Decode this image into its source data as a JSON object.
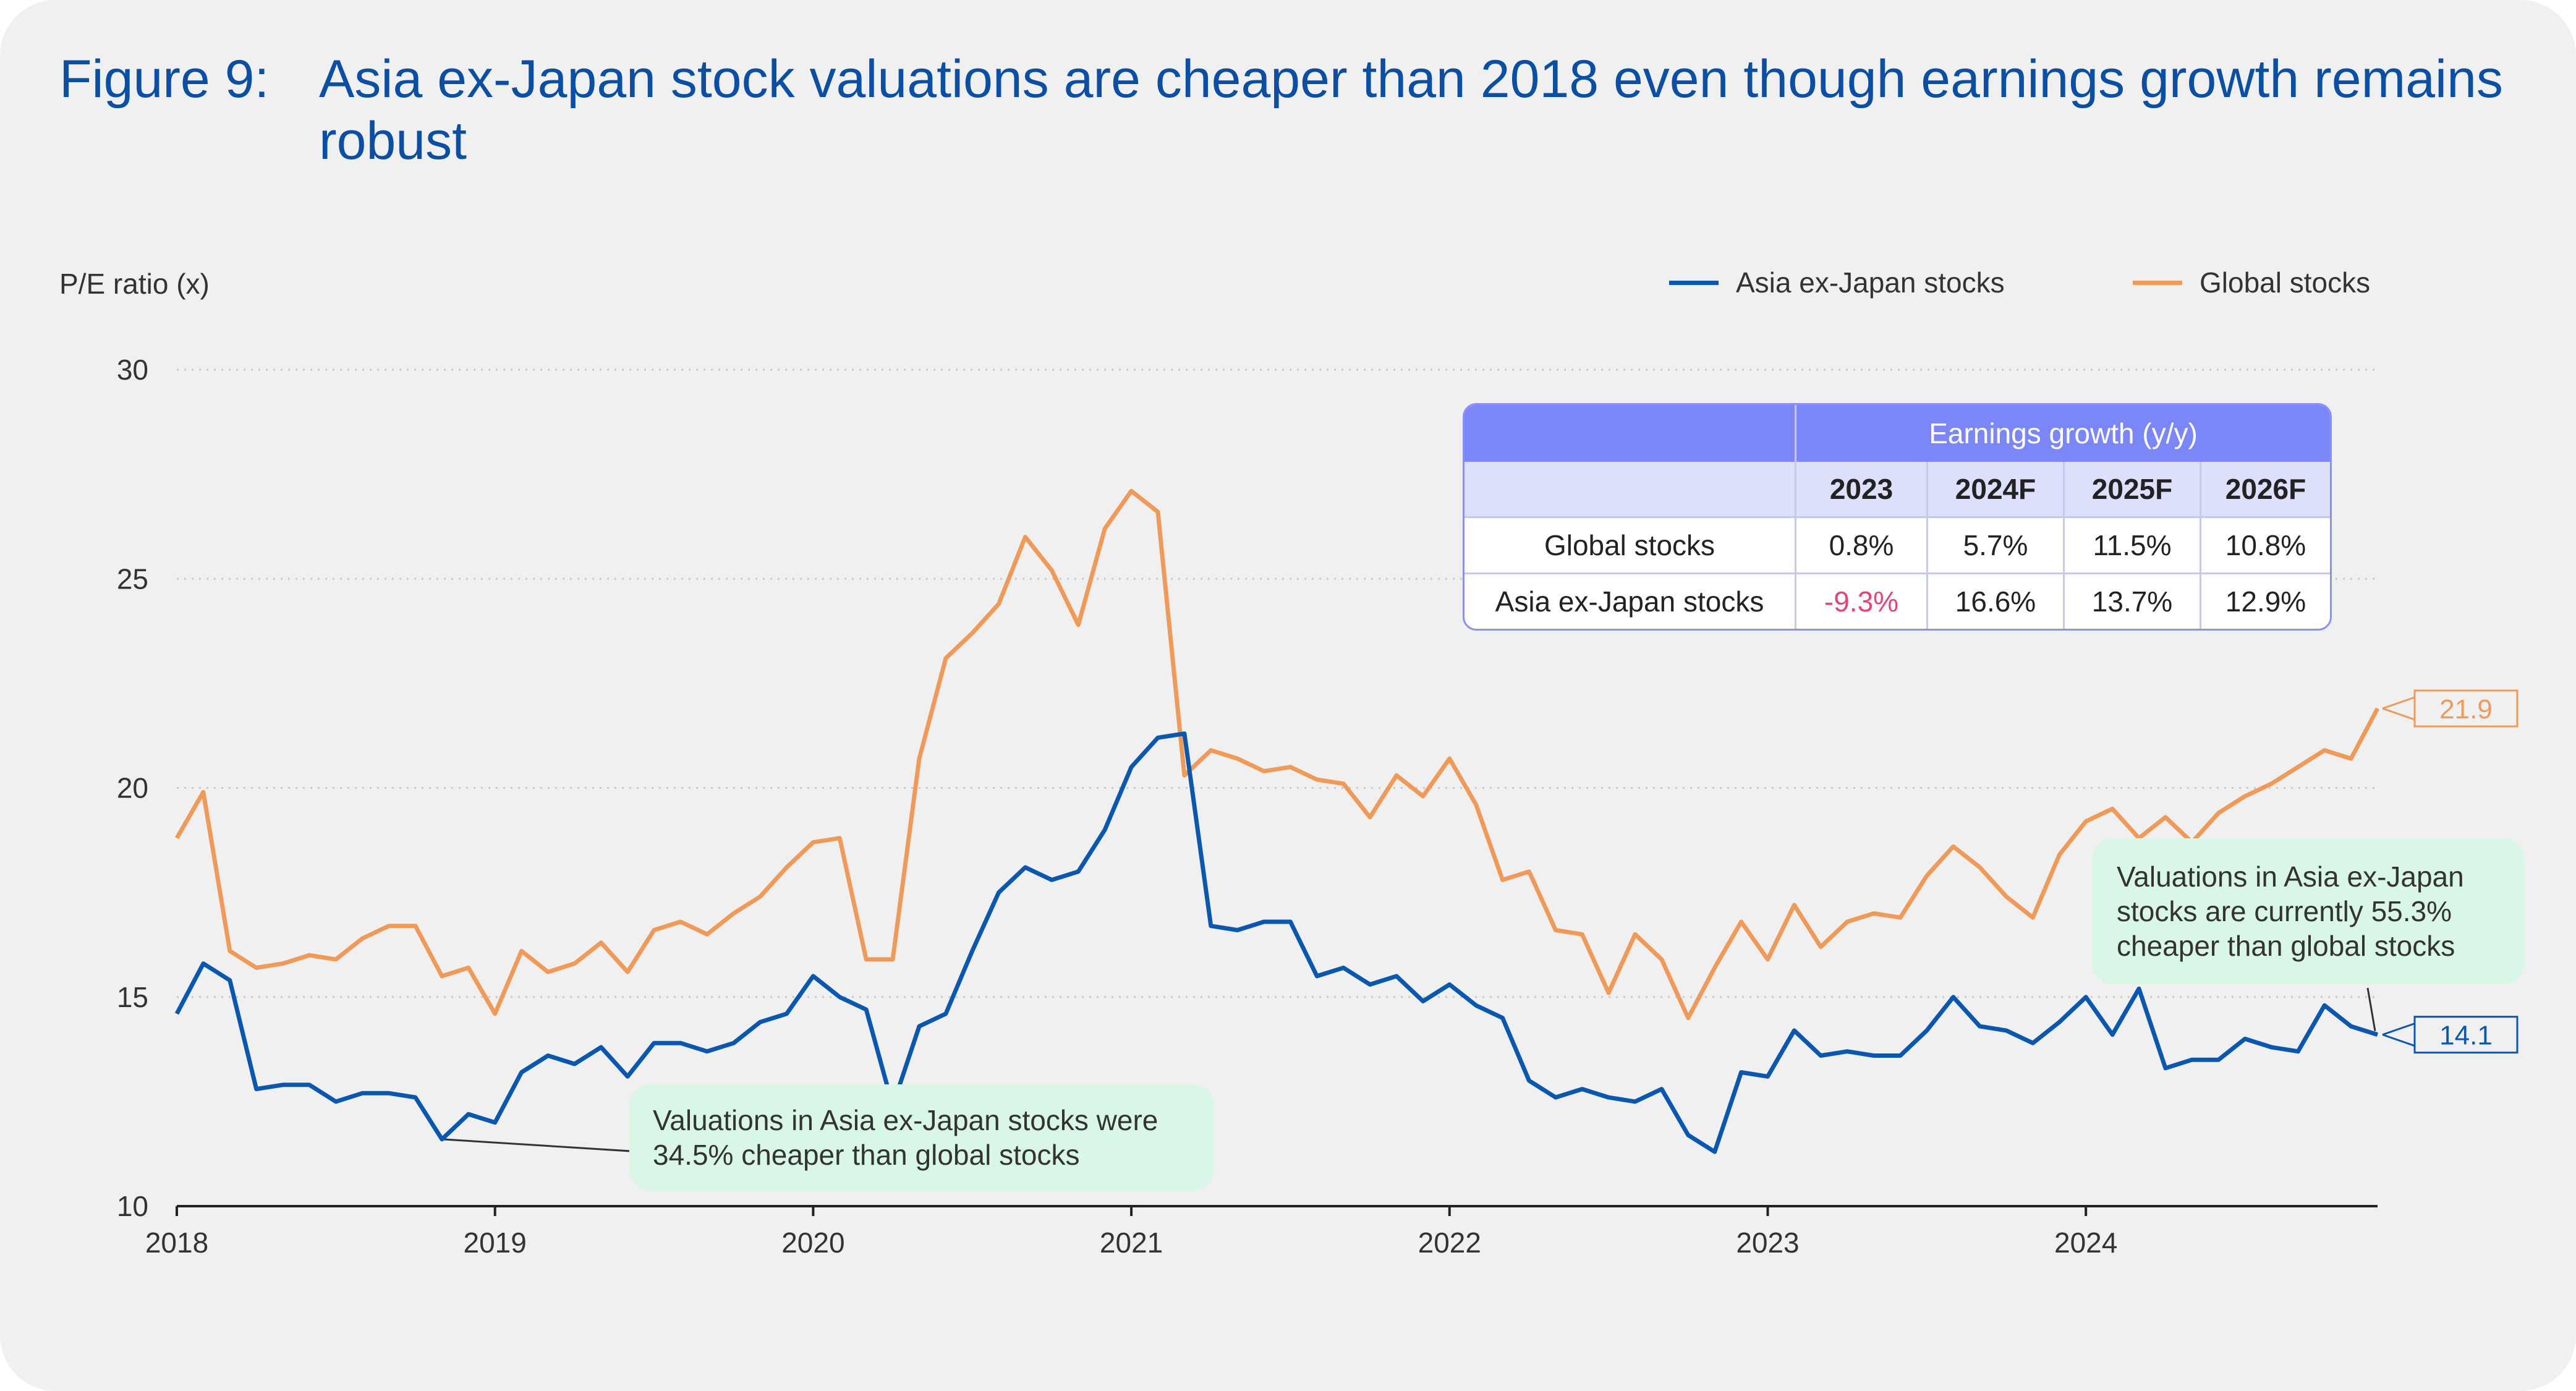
{
  "header": {
    "figure_label": "Figure 9:",
    "title": "Asia ex-Japan stock valuations are cheaper than 2018 even though earnings growth remains robust"
  },
  "table": {
    "group_header": "Earnings growth (y/y)",
    "columns": [
      "2023",
      "2024F",
      "2025F",
      "2026F"
    ],
    "rows": [
      {
        "label": "Global stocks",
        "values": [
          "0.8%",
          "5.7%",
          "11.5%",
          "10.8%"
        ]
      },
      {
        "label": "Asia ex-Japan stocks",
        "values": [
          "-9.3%",
          "16.6%",
          "13.7%",
          "12.9%"
        ]
      }
    ]
  },
  "annotations": {
    "left_note": "Valuations in Asia ex-Japan stocks were 34.5% cheaper than global stocks",
    "right_note": "Valuations in Asia ex-Japan stocks are currently 55.3% cheaper than global stocks"
  },
  "colors": {
    "asia": "#0a57b0",
    "global": "#f09a5a",
    "card_background": "#f0f0f0",
    "title": "#0a4fa3",
    "table_header": "#7b86f8",
    "note_background": "#d9f7e6",
    "negative": "#e0457b"
  },
  "chart_data": {
    "type": "line",
    "ylabel": "P/E ratio (x)",
    "ylim": [
      10,
      30
    ],
    "yticks": [
      10,
      15,
      20,
      25,
      30
    ],
    "x_tick_labels": [
      "2018",
      "2019",
      "2020",
      "2021",
      "2022",
      "2023",
      "2024"
    ],
    "x_range": [
      "2018-01",
      "2024-12"
    ],
    "grid": "horizontal dotted",
    "legend_position": "top-right",
    "x": [
      "2018-01",
      "2018-02",
      "2018-03",
      "2018-04",
      "2018-05",
      "2018-06",
      "2018-07",
      "2018-08",
      "2018-09",
      "2018-10",
      "2018-11",
      "2018-12",
      "2019-01",
      "2019-02",
      "2019-03",
      "2019-04",
      "2019-05",
      "2019-06",
      "2019-07",
      "2019-08",
      "2019-09",
      "2019-10",
      "2019-11",
      "2019-12",
      "2020-01",
      "2020-02",
      "2020-03",
      "2020-04",
      "2020-05",
      "2020-06",
      "2020-07",
      "2020-08",
      "2020-09",
      "2020-10",
      "2020-11",
      "2020-12",
      "2021-01",
      "2021-02",
      "2021-03",
      "2021-04",
      "2021-05",
      "2021-06",
      "2021-07",
      "2021-08",
      "2021-09",
      "2021-10",
      "2021-11",
      "2021-12",
      "2022-01",
      "2022-02",
      "2022-03",
      "2022-04",
      "2022-05",
      "2022-06",
      "2022-07",
      "2022-08",
      "2022-09",
      "2022-10",
      "2022-11",
      "2022-12",
      "2023-01",
      "2023-02",
      "2023-03",
      "2023-04",
      "2023-05",
      "2023-06",
      "2023-07",
      "2023-08",
      "2023-09",
      "2023-10",
      "2023-11",
      "2023-12",
      "2024-01",
      "2024-02",
      "2024-03",
      "2024-04",
      "2024-05",
      "2024-06",
      "2024-07",
      "2024-08",
      "2024-09",
      "2024-10",
      "2024-11",
      "2024-12"
    ],
    "series": [
      {
        "name": "Asia ex-Japan stocks",
        "end_label": "14.1",
        "values": [
          14.6,
          15.8,
          15.4,
          12.8,
          12.9,
          12.9,
          12.5,
          12.7,
          12.7,
          12.6,
          11.6,
          12.2,
          12.0,
          13.2,
          13.6,
          13.4,
          13.8,
          13.1,
          13.9,
          13.9,
          13.7,
          13.9,
          14.4,
          14.6,
          15.5,
          15.0,
          14.7,
          12.4,
          14.3,
          14.6,
          16.1,
          17.5,
          18.1,
          17.8,
          18.0,
          19.0,
          20.5,
          21.2,
          21.3,
          16.7,
          16.6,
          16.8,
          16.8,
          15.5,
          15.7,
          15.3,
          15.5,
          14.9,
          15.3,
          14.8,
          14.5,
          13.0,
          12.6,
          12.8,
          12.6,
          12.5,
          12.8,
          11.7,
          11.3,
          13.2,
          13.1,
          14.2,
          13.6,
          13.7,
          13.6,
          13.6,
          14.2,
          15.0,
          14.3,
          14.2,
          13.9,
          14.4,
          15.0,
          14.1,
          15.2,
          13.3,
          13.5,
          13.5,
          14.0,
          13.8,
          13.7,
          14.8,
          14.3,
          14.1
        ]
      },
      {
        "name": "Global stocks",
        "end_label": "21.9",
        "values": [
          18.8,
          19.9,
          16.1,
          15.7,
          15.8,
          16.0,
          15.9,
          16.4,
          16.7,
          16.7,
          15.5,
          15.7,
          14.6,
          16.1,
          15.6,
          15.8,
          16.3,
          15.6,
          16.6,
          16.8,
          16.5,
          17.0,
          17.4,
          18.1,
          18.7,
          18.8,
          15.9,
          15.9,
          20.7,
          23.1,
          23.7,
          24.4,
          26.0,
          25.2,
          23.9,
          26.2,
          27.1,
          26.6,
          20.3,
          20.9,
          20.7,
          20.4,
          20.5,
          20.2,
          20.1,
          19.3,
          20.3,
          19.8,
          20.7,
          19.6,
          17.8,
          18.0,
          16.6,
          16.5,
          15.1,
          16.5,
          15.9,
          14.5,
          15.7,
          16.8,
          15.9,
          17.2,
          16.2,
          16.8,
          17.0,
          16.9,
          17.9,
          18.6,
          18.1,
          17.4,
          16.9,
          18.4,
          19.2,
          19.5,
          18.8,
          19.3,
          18.7,
          19.4,
          19.8,
          20.1,
          20.5,
          20.9,
          20.7,
          21.9
        ]
      }
    ]
  }
}
